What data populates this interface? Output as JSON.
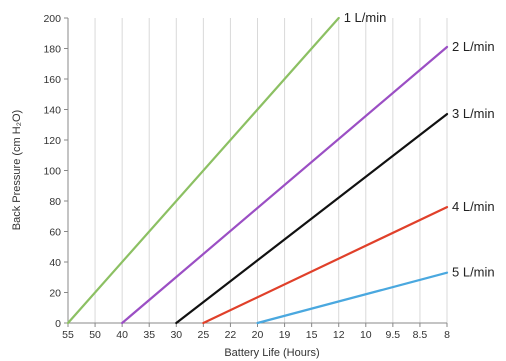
{
  "chart_data": {
    "type": "line",
    "xlabel": "Battery Life (Hours)",
    "ylabel": "Back Pressure (cm H₂O)",
    "x_ticks": [
      "55",
      "50",
      "40",
      "35",
      "30",
      "25",
      "22",
      "20",
      "19",
      "15",
      "12",
      "10",
      "9.5",
      "8.5",
      "8"
    ],
    "ylim": [
      0,
      200
    ],
    "y_ticks": [
      0,
      20,
      40,
      60,
      80,
      100,
      120,
      140,
      160,
      180,
      200
    ],
    "grid": "vertical",
    "series": [
      {
        "name": "1 L/min",
        "color": "#8cc063",
        "points": [
          {
            "x": "55",
            "y": 0
          },
          {
            "x": "12",
            "y": 200
          }
        ]
      },
      {
        "name": "2 L/min",
        "color": "#9b4fc4",
        "points": [
          {
            "x": "40",
            "y": 0
          },
          {
            "x": "8",
            "y": 181
          }
        ]
      },
      {
        "name": "3 L/min",
        "color": "#111111",
        "points": [
          {
            "x": "30",
            "y": 0
          },
          {
            "x": "8",
            "y": 137
          }
        ]
      },
      {
        "name": "4 L/min",
        "color": "#e0402a",
        "points": [
          {
            "x": "25",
            "y": 0
          },
          {
            "x": "8",
            "y": 76
          }
        ]
      },
      {
        "name": "5 L/min",
        "color": "#4aa8df",
        "points": [
          {
            "x": "20",
            "y": 0
          },
          {
            "x": "8",
            "y": 33
          }
        ]
      }
    ]
  }
}
